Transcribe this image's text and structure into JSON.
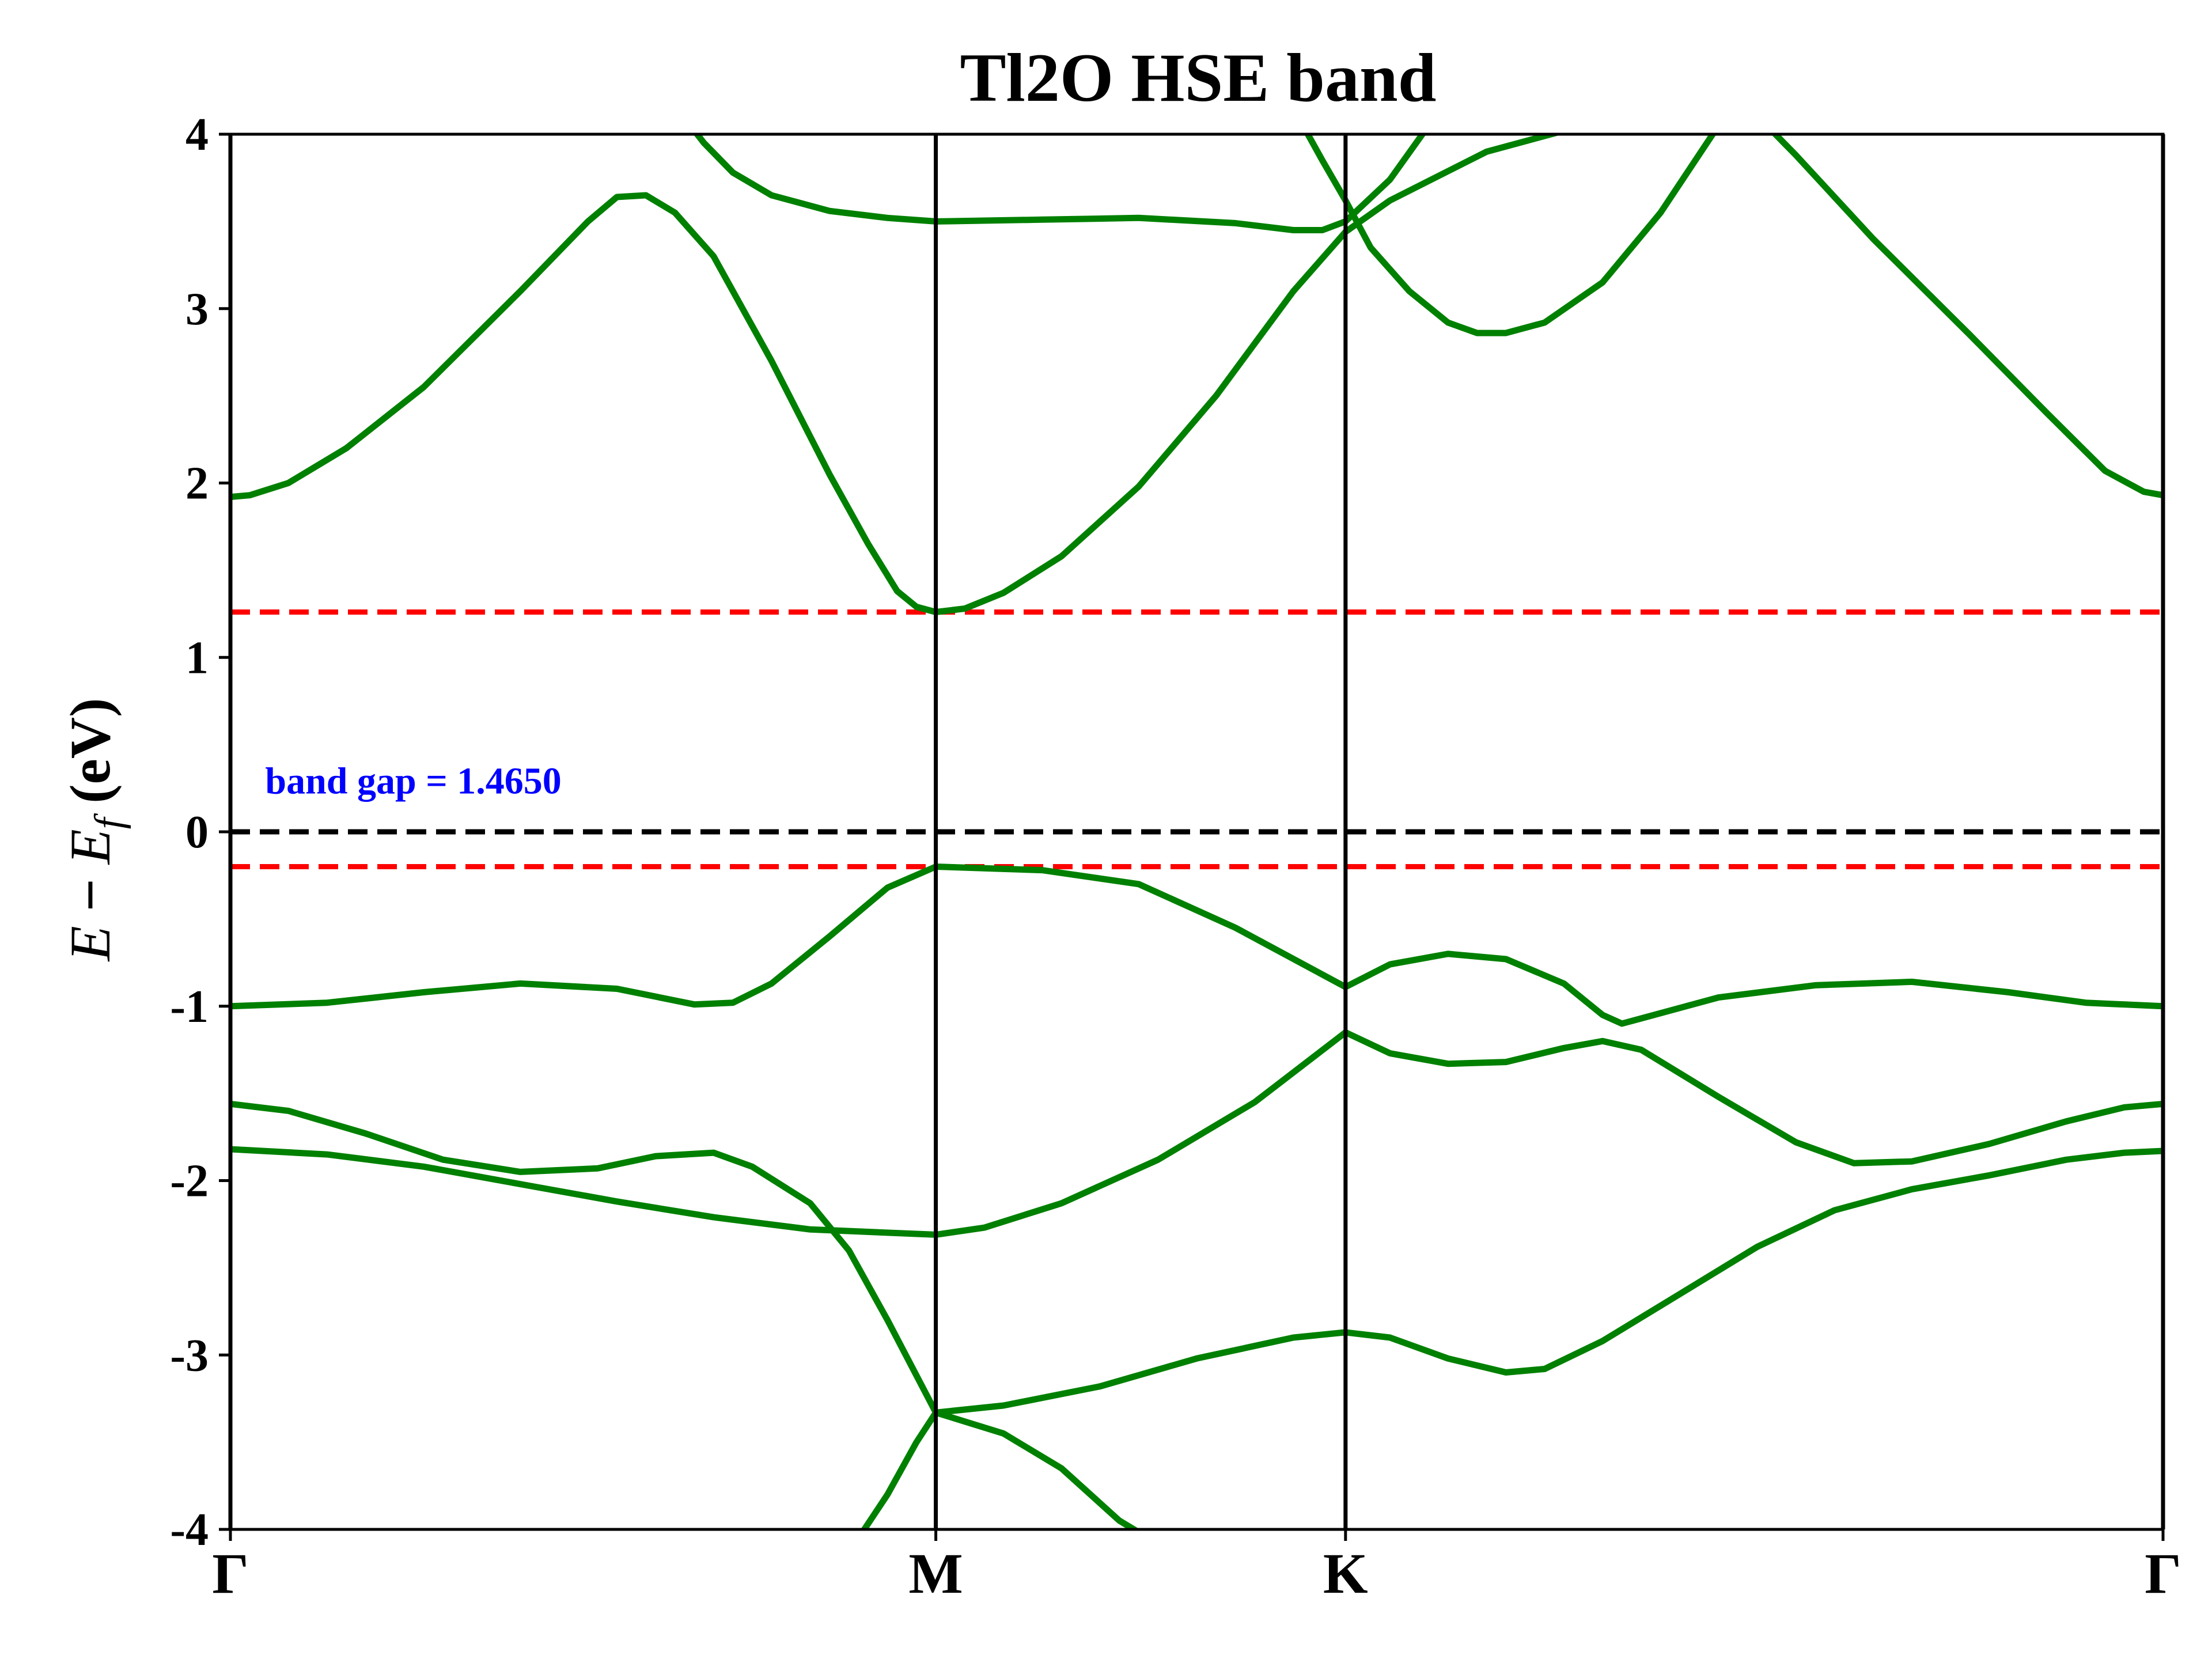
{
  "chart_data": {
    "type": "line",
    "title": "Tl2O HSE band",
    "ylabel_parts": [
      "E",
      " − ",
      "E",
      "f",
      " (eV)"
    ],
    "ylim": [
      -4,
      4
    ],
    "yticks": [
      4,
      3,
      2,
      1,
      0,
      -1,
      -2,
      -3,
      -4
    ],
    "ytick_labels": [
      "4",
      "3",
      "2",
      "1",
      "0",
      "-1",
      "-2",
      "-3",
      "-4"
    ],
    "xlim": [
      0,
      1
    ],
    "kpoints": [
      {
        "label": "Γ",
        "x": 0.0
      },
      {
        "label": "M",
        "x": 0.365
      },
      {
        "label": "K",
        "x": 0.577
      },
      {
        "label": "Γ",
        "x": 1.0
      }
    ],
    "annotation": {
      "text": "band gap = 1.4650",
      "x": 0.018,
      "y": 0.22,
      "color": "#0000ff"
    },
    "hlines": [
      {
        "y": 1.26,
        "color": "#ff0000",
        "style": "dashed"
      },
      {
        "y": 0.0,
        "color": "#000000",
        "style": "dashed"
      },
      {
        "y": -0.2,
        "color": "#ff0000",
        "style": "dashed"
      }
    ],
    "band_color": "#008000",
    "series": [
      {
        "points": [
          [
            0.0,
            1.92
          ],
          [
            0.01,
            1.93
          ],
          [
            0.03,
            2.0
          ],
          [
            0.06,
            2.2
          ],
          [
            0.1,
            2.55
          ],
          [
            0.15,
            3.1
          ],
          [
            0.185,
            3.5
          ],
          [
            0.2,
            3.64
          ],
          [
            0.215,
            3.65
          ],
          [
            0.23,
            3.55
          ],
          [
            0.25,
            3.3
          ],
          [
            0.28,
            2.7
          ],
          [
            0.31,
            2.05
          ],
          [
            0.33,
            1.65
          ],
          [
            0.345,
            1.38
          ],
          [
            0.355,
            1.29
          ],
          [
            0.365,
            1.26
          ]
        ]
      },
      {
        "points": [
          [
            0.365,
            1.26
          ],
          [
            0.38,
            1.28
          ],
          [
            0.4,
            1.37
          ],
          [
            0.43,
            1.58
          ],
          [
            0.47,
            1.98
          ],
          [
            0.51,
            2.5
          ],
          [
            0.55,
            3.1
          ],
          [
            0.577,
            3.44
          ],
          [
            0.6,
            3.62
          ],
          [
            0.65,
            3.9
          ],
          [
            0.7,
            4.05
          ]
        ]
      },
      {
        "points": [
          [
            0.238,
            4.05
          ],
          [
            0.245,
            3.95
          ],
          [
            0.26,
            3.78
          ],
          [
            0.28,
            3.65
          ],
          [
            0.31,
            3.56
          ],
          [
            0.34,
            3.52
          ],
          [
            0.365,
            3.5
          ],
          [
            0.42,
            3.51
          ],
          [
            0.47,
            3.52
          ],
          [
            0.52,
            3.49
          ],
          [
            0.55,
            3.45
          ],
          [
            0.565,
            3.45
          ],
          [
            0.577,
            3.5
          ],
          [
            0.6,
            3.74
          ],
          [
            0.62,
            4.05
          ]
        ]
      },
      {
        "points": [
          [
            0.555,
            4.05
          ],
          [
            0.565,
            3.85
          ],
          [
            0.577,
            3.62
          ],
          [
            0.59,
            3.35
          ],
          [
            0.61,
            3.1
          ],
          [
            0.63,
            2.92
          ],
          [
            0.645,
            2.86
          ],
          [
            0.66,
            2.86
          ],
          [
            0.68,
            2.92
          ],
          [
            0.71,
            3.15
          ],
          [
            0.74,
            3.55
          ],
          [
            0.77,
            4.05
          ]
        ]
      },
      {
        "points": [
          [
            0.795,
            4.05
          ],
          [
            0.81,
            3.88
          ],
          [
            0.85,
            3.4
          ],
          [
            0.9,
            2.85
          ],
          [
            0.94,
            2.4
          ],
          [
            0.97,
            2.07
          ],
          [
            0.99,
            1.95
          ],
          [
            1.0,
            1.93
          ]
        ]
      },
      {
        "points": [
          [
            0.0,
            -1.0
          ],
          [
            0.05,
            -0.98
          ],
          [
            0.1,
            -0.92
          ],
          [
            0.15,
            -0.87
          ],
          [
            0.2,
            -0.9
          ],
          [
            0.24,
            -0.99
          ],
          [
            0.26,
            -0.98
          ],
          [
            0.28,
            -0.87
          ],
          [
            0.31,
            -0.6
          ],
          [
            0.34,
            -0.32
          ],
          [
            0.365,
            -0.2
          ],
          [
            0.42,
            -0.22
          ],
          [
            0.47,
            -0.3
          ],
          [
            0.52,
            -0.55
          ],
          [
            0.577,
            -0.89
          ],
          [
            0.6,
            -0.76
          ],
          [
            0.63,
            -0.7
          ],
          [
            0.66,
            -0.73
          ],
          [
            0.69,
            -0.87
          ],
          [
            0.71,
            -1.05
          ],
          [
            0.72,
            -1.1
          ],
          [
            0.73,
            -1.07
          ],
          [
            0.77,
            -0.95
          ],
          [
            0.82,
            -0.88
          ],
          [
            0.87,
            -0.86
          ],
          [
            0.92,
            -0.92
          ],
          [
            0.96,
            -0.98
          ],
          [
            1.0,
            -1.0
          ]
        ]
      },
      {
        "points": [
          [
            0.0,
            -1.56
          ],
          [
            0.03,
            -1.6
          ],
          [
            0.07,
            -1.73
          ],
          [
            0.11,
            -1.88
          ],
          [
            0.15,
            -1.95
          ],
          [
            0.19,
            -1.93
          ],
          [
            0.22,
            -1.86
          ],
          [
            0.25,
            -1.84
          ],
          [
            0.27,
            -1.92
          ],
          [
            0.3,
            -2.13
          ],
          [
            0.32,
            -2.4
          ],
          [
            0.34,
            -2.8
          ],
          [
            0.365,
            -3.33
          ],
          [
            0.4,
            -3.45
          ],
          [
            0.43,
            -3.65
          ],
          [
            0.46,
            -3.95
          ],
          [
            0.475,
            -4.05
          ]
        ]
      },
      {
        "points": [
          [
            0.0,
            -1.82
          ],
          [
            0.05,
            -1.85
          ],
          [
            0.1,
            -1.92
          ],
          [
            0.15,
            -2.02
          ],
          [
            0.2,
            -2.12
          ],
          [
            0.25,
            -2.21
          ],
          [
            0.3,
            -2.28
          ],
          [
            0.365,
            -2.31
          ],
          [
            0.39,
            -2.27
          ],
          [
            0.43,
            -2.13
          ],
          [
            0.48,
            -1.88
          ],
          [
            0.53,
            -1.55
          ],
          [
            0.577,
            -1.15
          ],
          [
            0.6,
            -1.27
          ],
          [
            0.63,
            -1.33
          ],
          [
            0.66,
            -1.32
          ],
          [
            0.69,
            -1.24
          ],
          [
            0.71,
            -1.2
          ],
          [
            0.73,
            -1.25
          ],
          [
            0.77,
            -1.52
          ],
          [
            0.81,
            -1.78
          ],
          [
            0.84,
            -1.9
          ],
          [
            0.87,
            -1.89
          ],
          [
            0.91,
            -1.79
          ],
          [
            0.95,
            -1.66
          ],
          [
            0.98,
            -1.58
          ],
          [
            1.0,
            -1.56
          ]
        ]
      },
      {
        "points": [
          [
            0.325,
            -4.05
          ],
          [
            0.34,
            -3.8
          ],
          [
            0.355,
            -3.5
          ],
          [
            0.365,
            -3.33
          ],
          [
            0.4,
            -3.29
          ],
          [
            0.45,
            -3.18
          ],
          [
            0.5,
            -3.02
          ],
          [
            0.55,
            -2.9
          ],
          [
            0.577,
            -2.87
          ],
          [
            0.6,
            -2.9
          ],
          [
            0.63,
            -3.02
          ],
          [
            0.66,
            -3.1
          ],
          [
            0.68,
            -3.08
          ],
          [
            0.71,
            -2.92
          ],
          [
            0.75,
            -2.65
          ],
          [
            0.79,
            -2.38
          ],
          [
            0.83,
            -2.17
          ],
          [
            0.87,
            -2.05
          ],
          [
            0.91,
            -1.97
          ],
          [
            0.95,
            -1.88
          ],
          [
            0.98,
            -1.84
          ],
          [
            1.0,
            -1.83
          ]
        ]
      }
    ]
  }
}
